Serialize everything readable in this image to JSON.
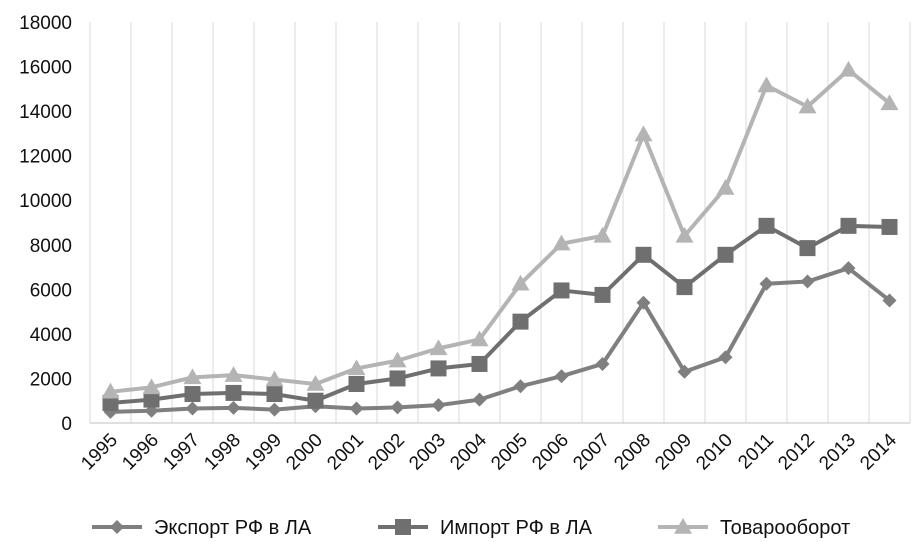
{
  "chart_data": {
    "type": "line",
    "title": "",
    "xlabel": "",
    "ylabel": "",
    "categories": [
      "1995",
      "1996",
      "1997",
      "1998",
      "1999",
      "2000",
      "2001",
      "2002",
      "2003",
      "2004",
      "2005",
      "2006",
      "2007",
      "2008",
      "2009",
      "2010",
      "2011",
      "2012",
      "2013",
      "2014"
    ],
    "ylim": [
      0,
      18000
    ],
    "yticks": [
      0,
      2000,
      4000,
      6000,
      8000,
      10000,
      12000,
      14000,
      16000,
      18000
    ],
    "grid": "vertical",
    "legend_position": "bottom",
    "series": [
      {
        "name": "Экспорт РФ в ЛА",
        "marker": "diamond",
        "color": "#7f7f7f",
        "values": [
          500,
          550,
          650,
          680,
          600,
          750,
          650,
          700,
          800,
          1050,
          1650,
          2100,
          2650,
          5400,
          2300,
          2950,
          6250,
          6350,
          6950,
          5500
        ]
      },
      {
        "name": "Импорт РФ в ЛА",
        "marker": "square",
        "color": "#6f6f6f",
        "values": [
          900,
          1050,
          1300,
          1350,
          1300,
          1000,
          1750,
          2000,
          2450,
          2650,
          4550,
          5950,
          5750,
          7550,
          6100,
          7550,
          8850,
          7850,
          8850,
          8800
        ]
      },
      {
        "name": "Товарооборот",
        "marker": "triangle",
        "color": "#b4b4b4",
        "values": [
          1400,
          1600,
          2050,
          2150,
          1950,
          1750,
          2450,
          2800,
          3350,
          3750,
          6250,
          8050,
          8400,
          12950,
          8400,
          10550,
          15150,
          14200,
          15850,
          14350
        ]
      }
    ]
  }
}
